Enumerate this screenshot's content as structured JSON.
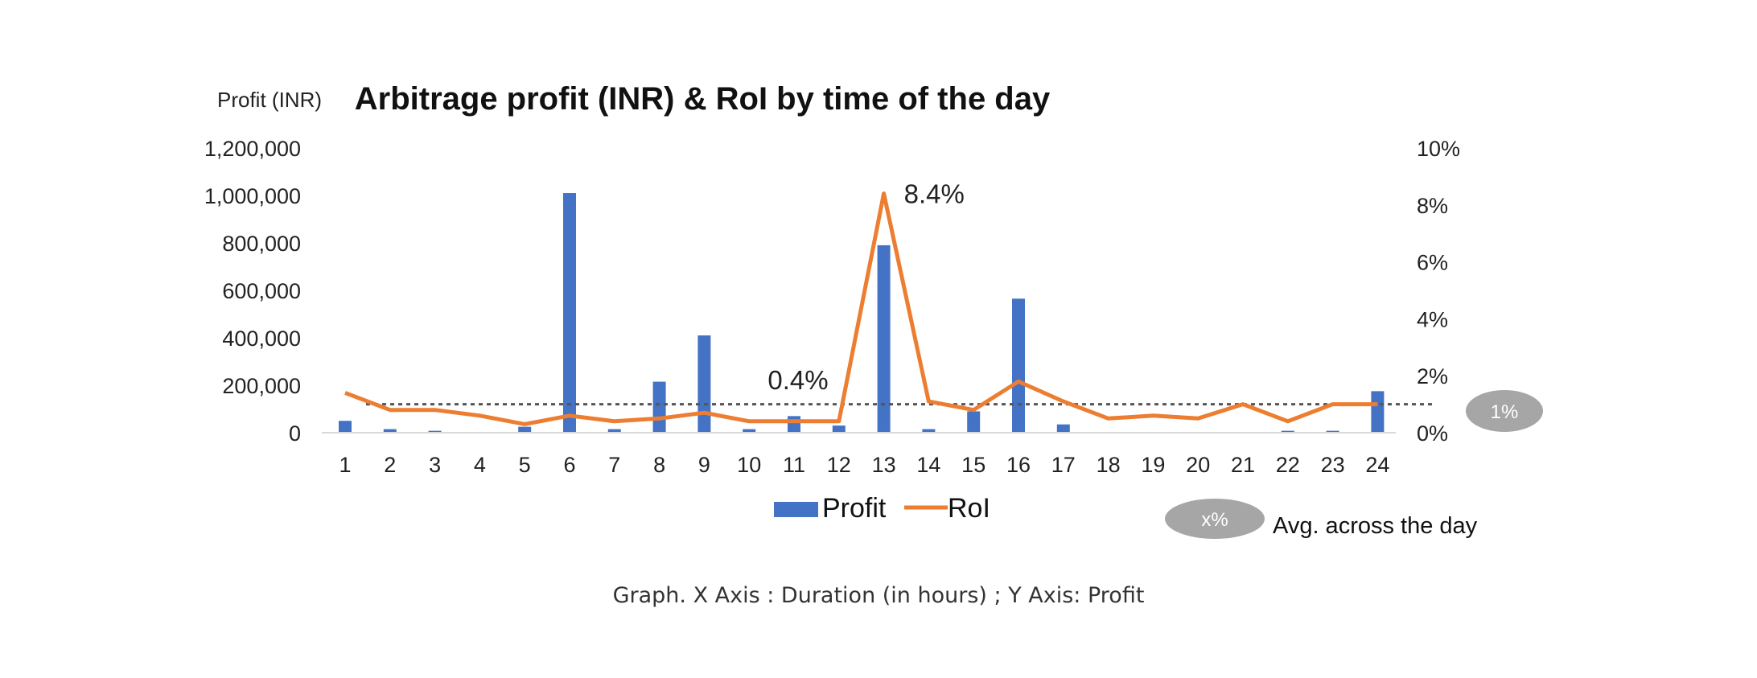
{
  "chart_data": {
    "type": "bar",
    "title": "Arbitrage profit (INR)  & RoI by time of the day",
    "ylabel": "Profit  (INR)",
    "ylim": [
      0,
      1200000
    ],
    "y_ticks": [
      "0",
      "200,000",
      "400,000",
      "600,000",
      "800,000",
      "1,000,000",
      "1,200,000"
    ],
    "y2lim": [
      0,
      10
    ],
    "y2_ticks": [
      "0%",
      "2%",
      "4%",
      "6%",
      "8%",
      "10%"
    ],
    "categories": [
      "1",
      "2",
      "3",
      "4",
      "5",
      "6",
      "7",
      "8",
      "9",
      "10",
      "11",
      "12",
      "13",
      "14",
      "15",
      "16",
      "17",
      "18",
      "19",
      "20",
      "21",
      "22",
      "23",
      "24"
    ],
    "series": [
      {
        "name": "Profit",
        "type": "bar",
        "axis": "left",
        "color": "#4472C4",
        "values": [
          50000,
          15000,
          8000,
          0,
          25000,
          1010000,
          15000,
          215000,
          410000,
          15000,
          70000,
          30000,
          790000,
          15000,
          90000,
          565000,
          35000,
          0,
          0,
          0,
          0,
          8000,
          8000,
          175000
        ]
      },
      {
        "name": "RoI",
        "type": "line",
        "axis": "right",
        "color": "#ED7D31",
        "values": [
          1.4,
          0.8,
          0.8,
          0.6,
          0.3,
          0.6,
          0.4,
          0.5,
          0.7,
          0.4,
          0.4,
          0.4,
          8.4,
          1.1,
          0.8,
          1.8,
          1.1,
          0.5,
          0.6,
          0.5,
          1.0,
          0.4,
          1.0,
          1.0
        ]
      }
    ],
    "average_line": {
      "value": 1,
      "label": "1%",
      "style": "dotted",
      "color": "#555555"
    },
    "annotations": [
      {
        "text": "0.4%",
        "category": "11",
        "series": "RoI"
      },
      {
        "text": "8.4%",
        "category": "13",
        "series": "RoI"
      }
    ],
    "legend": {
      "placement": "bottom"
    },
    "grid": false
  },
  "avg_legend": {
    "badge": "x%",
    "text": "Avg. across the day"
  },
  "caption": "Graph. X Axis : Duration (in hours) ; Y Axis:  Profit",
  "colors": {
    "bar": "#4472C4",
    "line": "#ED7D31",
    "axis_text": "#222222",
    "badge": "#A6A6A6"
  }
}
